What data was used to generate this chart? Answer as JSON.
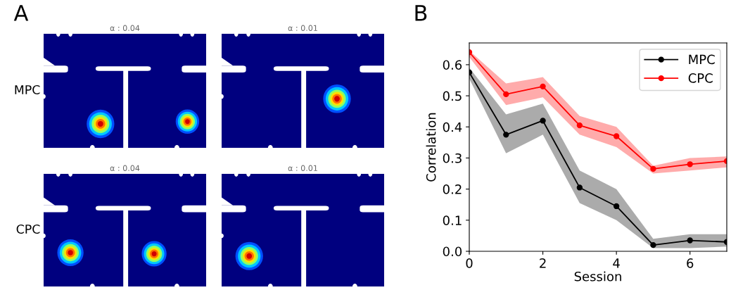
{
  "chart_data": [
    {
      "type": "other",
      "title": "α : 0.04",
      "ylabel": "MPC",
      "annotations": [
        "A"
      ]
    },
    {
      "type": "other",
      "title": "α : 0.01"
    },
    {
      "type": "other",
      "title": "α : 0.04",
      "ylabel": "CPC"
    },
    {
      "type": "other",
      "title": "α : 0.01"
    },
    {
      "type": "line",
      "annotations": [
        "B"
      ],
      "xlabel": "Session",
      "ylabel": "Correlation",
      "x": [
        0,
        1,
        2,
        3,
        4,
        5,
        6,
        7
      ],
      "xlim": [
        0,
        7
      ],
      "xticks": [
        0,
        2,
        4,
        6
      ],
      "ylim": [
        0,
        0.67
      ],
      "yticks": [
        {
          "value": 0,
          "label": "0.0"
        },
        0.1,
        0.2,
        0.3,
        0.4,
        0.5,
        0.6
      ],
      "marker": "circle",
      "line_style": "solid",
      "legend": "top right",
      "grid": false,
      "series": [
        {
          "name": "MPC",
          "color": "#000000",
          "values": [
            0.575,
            0.375,
            0.42,
            0.205,
            0.145,
            0.02,
            0.035,
            0.03
          ],
          "lower": [
            0.555,
            0.315,
            0.375,
            0.155,
            0.1,
            0.01,
            0.01,
            0.015
          ],
          "upper": [
            0.59,
            0.44,
            0.475,
            0.26,
            0.2,
            0.04,
            0.055,
            0.055
          ]
        },
        {
          "name": "CPC",
          "color": "#ff0000",
          "values": [
            0.64,
            0.505,
            0.53,
            0.405,
            0.37,
            0.265,
            0.28,
            0.29
          ],
          "lower": [
            0.625,
            0.47,
            0.495,
            0.375,
            0.335,
            0.25,
            0.26,
            0.27
          ],
          "upper": [
            0.645,
            0.54,
            0.56,
            0.435,
            0.4,
            0.275,
            0.3,
            0.305
          ]
        }
      ]
    }
  ]
}
